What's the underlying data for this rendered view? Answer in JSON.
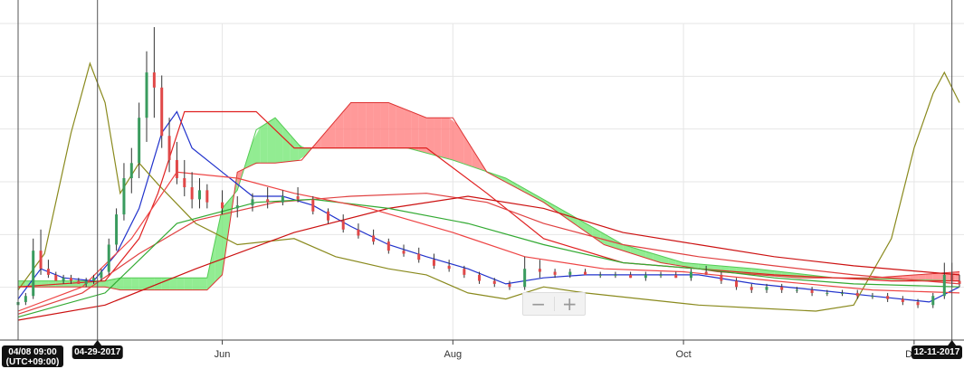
{
  "chart_data": {
    "type": "line",
    "subtype": "candlestick-with-ichimoku-and-moving-averages",
    "title": "",
    "xlabel": "",
    "ylabel": "",
    "x_tick_labels": [
      {
        "label": "Jun",
        "date": "2017-06-01"
      },
      {
        "label": "Aug",
        "date": "2017-08-01"
      },
      {
        "label": "Oct",
        "date": "2017-10-01"
      },
      {
        "label": "Dec",
        "date": "2017-12-01"
      }
    ],
    "x_range": [
      "2017-04-08",
      "2017-12-13"
    ],
    "y_range": [
      0,
      100
    ],
    "grid": true,
    "crosshair_markers": [
      {
        "label": "04/08 09:00\n(UTC+09:00)",
        "date": "2017-04-08"
      },
      {
        "label": "04-29-2017",
        "date": "2017-04-29"
      },
      {
        "label": "12-11-2017",
        "date": "2017-12-11"
      }
    ],
    "candles": {
      "up_color": "#3a9b5e",
      "down_color": "#e04848",
      "points": [
        [
          "2017-04-08",
          8,
          10,
          7,
          9
        ],
        [
          "2017-04-10",
          9,
          12,
          8,
          11
        ],
        [
          "2017-04-12",
          11,
          30,
          10,
          26
        ],
        [
          "2017-04-14",
          26,
          33,
          18,
          20
        ],
        [
          "2017-04-16",
          20,
          23,
          17,
          18
        ],
        [
          "2017-04-18",
          18,
          19,
          16,
          16
        ],
        [
          "2017-04-20",
          16,
          18,
          15,
          17
        ],
        [
          "2017-04-22",
          17,
          18,
          15,
          16
        ],
        [
          "2017-04-24",
          16,
          17,
          15,
          15
        ],
        [
          "2017-04-26",
          15,
          17,
          14,
          16
        ],
        [
          "2017-04-28",
          16,
          18,
          15,
          17
        ],
        [
          "2017-04-30",
          17,
          20,
          16,
          19
        ],
        [
          "2017-05-02",
          19,
          30,
          18,
          28
        ],
        [
          "2017-05-04",
          28,
          40,
          26,
          38
        ],
        [
          "2017-05-06",
          38,
          55,
          36,
          50
        ],
        [
          "2017-05-08",
          50,
          60,
          45,
          55
        ],
        [
          "2017-05-10",
          55,
          75,
          50,
          70
        ],
        [
          "2017-05-12",
          70,
          92,
          62,
          85
        ],
        [
          "2017-05-14",
          85,
          100,
          70,
          80
        ],
        [
          "2017-05-16",
          80,
          84,
          60,
          64
        ],
        [
          "2017-05-18",
          64,
          70,
          52,
          56
        ],
        [
          "2017-05-20",
          56,
          62,
          48,
          50
        ],
        [
          "2017-05-22",
          50,
          56,
          44,
          47
        ],
        [
          "2017-05-24",
          47,
          52,
          40,
          43
        ],
        [
          "2017-05-26",
          43,
          50,
          40,
          46
        ],
        [
          "2017-05-28",
          46,
          48,
          40,
          42
        ],
        [
          "2017-06-01",
          42,
          46,
          38,
          40
        ],
        [
          "2017-06-05",
          40,
          44,
          37,
          41
        ],
        [
          "2017-06-09",
          41,
          45,
          39,
          43
        ],
        [
          "2017-06-13",
          43,
          47,
          40,
          42
        ],
        [
          "2017-06-17",
          42,
          46,
          41,
          44
        ],
        [
          "2017-06-21",
          44,
          47,
          42,
          43
        ],
        [
          "2017-06-25",
          43,
          44,
          38,
          39
        ],
        [
          "2017-06-29",
          39,
          40,
          35,
          36
        ],
        [
          "2017-07-03",
          36,
          38,
          32,
          33
        ],
        [
          "2017-07-07",
          33,
          35,
          30,
          31
        ],
        [
          "2017-07-11",
          31,
          33,
          28,
          29
        ],
        [
          "2017-07-15",
          29,
          30,
          25,
          26
        ],
        [
          "2017-07-19",
          26,
          28,
          24,
          25
        ],
        [
          "2017-07-23",
          25,
          27,
          22,
          23
        ],
        [
          "2017-07-27",
          23,
          25,
          20,
          21
        ],
        [
          "2017-07-31",
          21,
          23,
          19,
          20
        ],
        [
          "2017-08-04",
          20,
          21,
          17,
          18
        ],
        [
          "2017-08-08",
          18,
          19,
          15,
          16
        ],
        [
          "2017-08-12",
          16,
          17,
          14,
          15
        ],
        [
          "2017-08-16",
          15,
          16,
          13,
          14
        ],
        [
          "2017-08-20",
          14,
          24,
          13,
          20
        ],
        [
          "2017-08-24",
          20,
          23,
          17,
          19
        ],
        [
          "2017-08-28",
          19,
          20,
          17,
          18
        ],
        [
          "2017-09-01",
          18,
          20,
          17,
          19
        ],
        [
          "2017-09-05",
          19,
          20,
          18,
          18
        ],
        [
          "2017-09-09",
          18,
          19,
          17,
          18
        ],
        [
          "2017-09-13",
          18,
          19,
          17,
          18
        ],
        [
          "2017-09-17",
          18,
          19,
          17,
          17
        ],
        [
          "2017-09-21",
          17,
          19,
          16,
          18
        ],
        [
          "2017-09-25",
          18,
          19,
          17,
          18
        ],
        [
          "2017-09-29",
          18,
          19,
          17,
          17
        ],
        [
          "2017-10-03",
          17,
          20,
          16,
          19
        ],
        [
          "2017-10-07",
          19,
          21,
          18,
          18
        ],
        [
          "2017-10-11",
          18,
          19,
          15,
          16
        ],
        [
          "2017-10-15",
          16,
          17,
          13,
          14
        ],
        [
          "2017-10-19",
          14,
          15,
          12,
          13
        ],
        [
          "2017-10-23",
          13,
          15,
          12,
          14
        ],
        [
          "2017-10-27",
          14,
          15,
          12,
          13
        ],
        [
          "2017-10-31",
          13,
          14,
          12,
          13
        ],
        [
          "2017-11-04",
          13,
          14,
          11,
          12
        ],
        [
          "2017-11-08",
          12,
          13,
          11,
          12
        ],
        [
          "2017-11-12",
          12,
          13,
          11,
          12
        ],
        [
          "2017-11-16",
          12,
          13,
          10,
          11
        ],
        [
          "2017-11-20",
          11,
          12,
          10,
          11
        ],
        [
          "2017-11-24",
          11,
          12,
          9,
          10
        ],
        [
          "2017-11-28",
          10,
          11,
          8,
          9
        ],
        [
          "2017-12-02",
          9,
          10,
          7,
          8
        ],
        [
          "2017-12-06",
          8,
          12,
          7,
          11
        ],
        [
          "2017-12-09",
          11,
          22,
          10,
          18
        ],
        [
          "2017-12-11",
          18,
          22,
          14,
          16
        ],
        [
          "2017-12-13",
          16,
          18,
          14,
          15
        ]
      ]
    },
    "series": [
      {
        "color": "#2233cc",
        "points": [
          [
            "2017-04-08",
            10
          ],
          [
            "2017-04-14",
            20
          ],
          [
            "2017-04-20",
            17
          ],
          [
            "2017-04-28",
            16
          ],
          [
            "2017-05-04",
            25
          ],
          [
            "2017-05-10",
            40
          ],
          [
            "2017-05-16",
            65
          ],
          [
            "2017-05-20",
            72
          ],
          [
            "2017-05-24",
            60
          ],
          [
            "2017-06-01",
            52
          ],
          [
            "2017-06-09",
            44
          ],
          [
            "2017-06-17",
            44
          ],
          [
            "2017-06-25",
            41
          ],
          [
            "2017-07-05",
            34
          ],
          [
            "2017-07-15",
            28
          ],
          [
            "2017-07-25",
            24
          ],
          [
            "2017-08-05",
            20
          ],
          [
            "2017-08-15",
            15
          ],
          [
            "2017-08-25",
            17
          ],
          [
            "2017-09-05",
            18
          ],
          [
            "2017-09-20",
            18
          ],
          [
            "2017-10-05",
            18
          ],
          [
            "2017-10-20",
            15
          ],
          [
            "2017-11-05",
            13
          ],
          [
            "2017-11-20",
            11
          ],
          [
            "2017-12-05",
            9
          ],
          [
            "2017-12-13",
            14
          ]
        ]
      },
      {
        "color": "#8a8a1e",
        "points": [
          [
            "2017-04-08",
            13
          ],
          [
            "2017-04-15",
            25
          ],
          [
            "2017-04-22",
            65
          ],
          [
            "2017-04-27",
            88
          ],
          [
            "2017-05-01",
            75
          ],
          [
            "2017-05-05",
            45
          ],
          [
            "2017-05-10",
            55
          ],
          [
            "2017-05-15",
            48
          ],
          [
            "2017-05-25",
            35
          ],
          [
            "2017-06-05",
            28
          ],
          [
            "2017-06-20",
            30
          ],
          [
            "2017-07-01",
            24
          ],
          [
            "2017-07-15",
            20
          ],
          [
            "2017-07-25",
            18
          ],
          [
            "2017-08-05",
            12
          ],
          [
            "2017-08-15",
            10
          ],
          [
            "2017-08-25",
            14
          ],
          [
            "2017-09-05",
            12
          ],
          [
            "2017-09-20",
            10
          ],
          [
            "2017-10-05",
            8
          ],
          [
            "2017-10-20",
            7
          ],
          [
            "2017-11-05",
            6
          ],
          [
            "2017-11-15",
            8
          ],
          [
            "2017-11-25",
            30
          ],
          [
            "2017-12-01",
            60
          ],
          [
            "2017-12-06",
            78
          ],
          [
            "2017-12-09",
            85
          ],
          [
            "2017-12-13",
            75
          ]
        ]
      },
      {
        "color": "#e02020",
        "points": [
          [
            "2017-04-08",
            14
          ],
          [
            "2017-05-01",
            16
          ],
          [
            "2017-05-10",
            30
          ],
          [
            "2017-05-15",
            45
          ],
          [
            "2017-05-22",
            72
          ],
          [
            "2017-06-10",
            72
          ],
          [
            "2017-06-20",
            60
          ],
          [
            "2017-07-10",
            60
          ],
          [
            "2017-07-25",
            60
          ],
          [
            "2017-08-10",
            45
          ],
          [
            "2017-08-25",
            30
          ],
          [
            "2017-09-15",
            22
          ],
          [
            "2017-10-05",
            20
          ],
          [
            "2017-10-25",
            18
          ],
          [
            "2017-11-10",
            17
          ],
          [
            "2017-11-25",
            16
          ],
          [
            "2017-12-13",
            16
          ]
        ]
      },
      {
        "color": "#e04040",
        "points": [
          [
            "2017-04-08",
            5
          ],
          [
            "2017-04-25",
            12
          ],
          [
            "2017-05-10",
            25
          ],
          [
            "2017-05-25",
            36
          ],
          [
            "2017-06-15",
            42
          ],
          [
            "2017-07-05",
            44
          ],
          [
            "2017-07-25",
            45
          ],
          [
            "2017-08-10",
            42
          ],
          [
            "2017-08-25",
            35
          ],
          [
            "2017-09-15",
            28
          ],
          [
            "2017-10-05",
            24
          ],
          [
            "2017-10-25",
            21
          ],
          [
            "2017-11-15",
            18
          ],
          [
            "2017-12-13",
            15
          ]
        ]
      },
      {
        "color": "#cc1111",
        "points": [
          [
            "2017-04-08",
            3
          ],
          [
            "2017-05-01",
            8
          ],
          [
            "2017-05-25",
            20
          ],
          [
            "2017-06-20",
            32
          ],
          [
            "2017-07-15",
            40
          ],
          [
            "2017-08-05",
            44
          ],
          [
            "2017-08-25",
            40
          ],
          [
            "2017-09-15",
            32
          ],
          [
            "2017-10-05",
            28
          ],
          [
            "2017-10-25",
            24
          ],
          [
            "2017-11-15",
            21
          ],
          [
            "2017-12-13",
            18
          ]
        ]
      },
      {
        "color": "#33aa33",
        "points": [
          [
            "2017-04-08",
            4
          ],
          [
            "2017-05-01",
            12
          ],
          [
            "2017-05-20",
            35
          ],
          [
            "2017-06-10",
            42
          ],
          [
            "2017-06-25",
            43
          ],
          [
            "2017-07-15",
            40
          ],
          [
            "2017-08-05",
            35
          ],
          [
            "2017-08-25",
            28
          ],
          [
            "2017-09-15",
            22
          ],
          [
            "2017-10-05",
            20
          ],
          [
            "2017-10-25",
            17
          ],
          [
            "2017-11-15",
            15
          ],
          [
            "2017-12-13",
            14
          ]
        ]
      },
      {
        "color": "#ee4444",
        "points": [
          [
            "2017-04-08",
            6
          ],
          [
            "2017-04-25",
            14
          ],
          [
            "2017-05-08",
            30
          ],
          [
            "2017-05-20",
            52
          ],
          [
            "2017-06-05",
            50
          ],
          [
            "2017-06-20",
            45
          ],
          [
            "2017-07-10",
            40
          ],
          [
            "2017-08-01",
            32
          ],
          [
            "2017-08-20",
            24
          ],
          [
            "2017-09-10",
            20
          ],
          [
            "2017-10-01",
            19
          ],
          [
            "2017-10-25",
            16
          ],
          [
            "2017-11-20",
            13
          ],
          [
            "2017-12-13",
            12
          ]
        ]
      }
    ],
    "cloud": {
      "bullish_color": "#6ee66e",
      "bearish_color": "#ff7777",
      "span_a": [
        [
          "2017-04-08",
          16
        ],
        [
          "2017-05-01",
          16
        ],
        [
          "2017-05-05",
          17
        ],
        [
          "2017-05-28",
          17
        ],
        [
          "2017-06-01",
          40
        ],
        [
          "2017-06-05",
          46
        ],
        [
          "2017-06-10",
          66
        ],
        [
          "2017-06-15",
          70
        ],
        [
          "2017-06-22",
          60
        ],
        [
          "2017-07-05",
          60
        ],
        [
          "2017-07-20",
          60
        ],
        [
          "2017-08-01",
          56
        ],
        [
          "2017-08-15",
          50
        ],
        [
          "2017-09-01",
          38
        ],
        [
          "2017-09-15",
          28
        ],
        [
          "2017-10-01",
          22
        ],
        [
          "2017-10-20",
          20
        ],
        [
          "2017-11-10",
          17
        ],
        [
          "2017-12-13",
          16
        ]
      ],
      "span_b": [
        [
          "2017-04-08",
          14
        ],
        [
          "2017-05-01",
          14
        ],
        [
          "2017-05-05",
          13
        ],
        [
          "2017-05-28",
          13
        ],
        [
          "2017-06-01",
          18
        ],
        [
          "2017-06-05",
          52
        ],
        [
          "2017-06-10",
          55
        ],
        [
          "2017-06-15",
          55
        ],
        [
          "2017-06-22",
          56
        ],
        [
          "2017-07-05",
          75
        ],
        [
          "2017-07-15",
          75
        ],
        [
          "2017-07-25",
          70
        ],
        [
          "2017-08-01",
          70
        ],
        [
          "2017-08-10",
          52
        ],
        [
          "2017-08-25",
          42
        ],
        [
          "2017-09-10",
          28
        ],
        [
          "2017-09-25",
          22
        ],
        [
          "2017-10-10",
          19
        ],
        [
          "2017-11-01",
          17
        ],
        [
          "2017-11-20",
          17
        ],
        [
          "2017-12-13",
          19
        ]
      ]
    }
  },
  "zoom": {
    "minus": "−",
    "plus": "+"
  }
}
